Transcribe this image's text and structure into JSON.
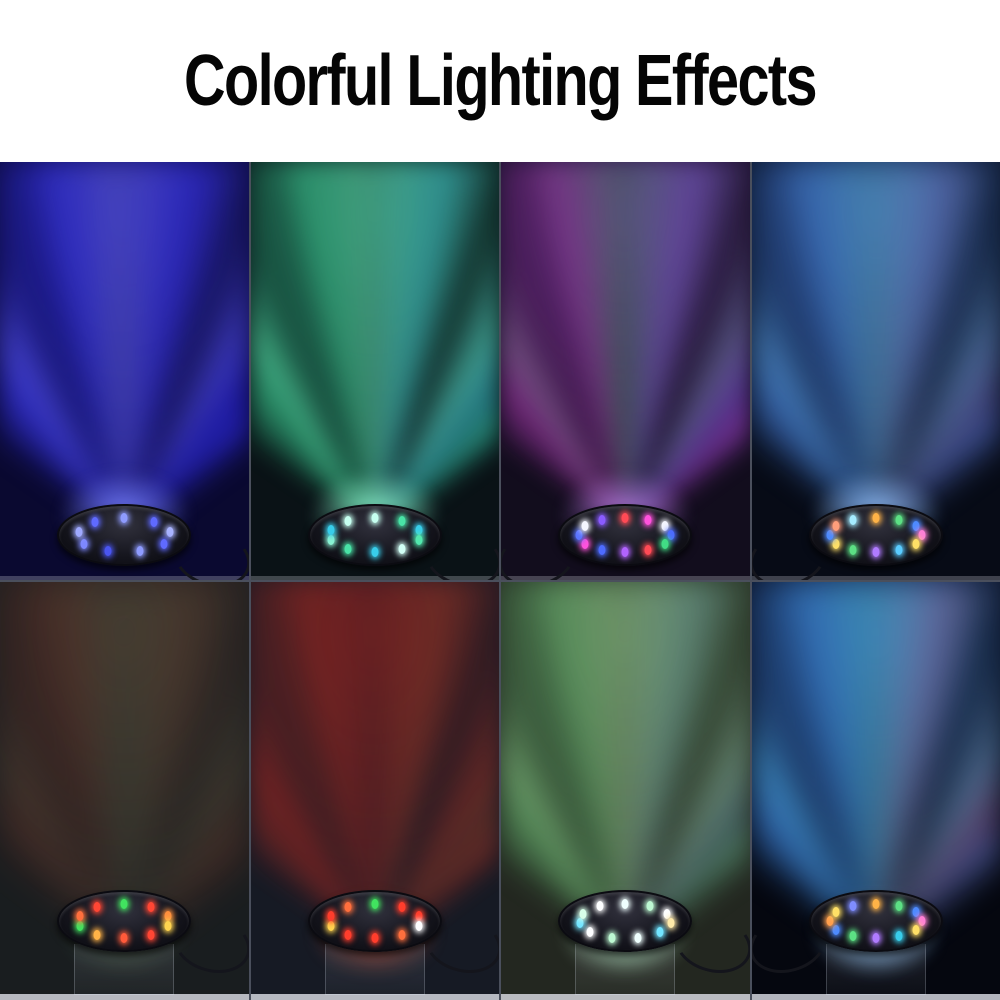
{
  "title": "Colorful Lighting Effects",
  "text_color": "#050505",
  "background_color": "#ffffff",
  "panels": [
    {
      "effect": "blue",
      "background": "#0a0930",
      "haze": "rgba(44,40,225,0.46)",
      "beam_colors": [
        "rgba(58,56,255,0.60)",
        "rgba(120,118,255,0.45)",
        "rgba(36,30,230,0.55)"
      ],
      "glow": "rgba(120,130,255,0.90)",
      "led_colors": [
        "#8e9bff",
        "#5f6aff",
        "#aab4ff",
        "#5f6aff",
        "#8e9bff",
        "#4a55f0",
        "#7d88ff",
        "#9fa9ff",
        "#5f6aff"
      ],
      "cord_side": "right",
      "stand": false
    },
    {
      "effect": "green-teal",
      "background": "#0a1216",
      "haze": "rgba(45,185,145,0.34)",
      "beam_colors": [
        "rgba(62,230,160,0.50)",
        "rgba(120,255,200,0.42)",
        "rgba(55,200,225,0.48)"
      ],
      "glow": "rgba(150,255,215,0.85)",
      "led_colors": [
        "#c6fff0",
        "#49e3a6",
        "#38cdea",
        "#52e8ae",
        "#d2fff6",
        "#38cdea",
        "#49e3a6",
        "#8af2d2",
        "#38cdea",
        "#c6fff0"
      ],
      "cord_side": "right",
      "stand": false
    },
    {
      "effect": "purple-magenta",
      "background": "#120d1d",
      "haze": "rgba(150,72,222,0.36)",
      "beam_colors": [
        "rgba(225,70,225,0.42)",
        "rgba(120,200,150,0.30)",
        "rgba(150,85,255,0.45)"
      ],
      "glow": "rgba(205,140,255,0.75)",
      "led_colors": [
        "#ff4a55",
        "#ff52dd",
        "#f5f6ff",
        "#4d6bff",
        "#41dd85",
        "#ff4a55",
        "#b163ff",
        "#4d6bff",
        "#ff52dd",
        "#5a74ff",
        "#f5f6ff",
        "#8a5bff"
      ],
      "cord_side": "left",
      "stand": false
    },
    {
      "effect": "blue-cyan",
      "background": "#070b16",
      "haze": "rgba(62,122,232,0.44)",
      "beam_colors": [
        "rgba(80,145,255,0.55)",
        "rgba(120,220,255,0.40)",
        "rgba(160,130,255,0.35)"
      ],
      "glow": "rgba(150,195,255,0.90)",
      "led_colors": [
        "#ffb347",
        "#5ce084",
        "#4d8bff",
        "#ff7fd6",
        "#ffe066",
        "#5accff",
        "#b07bff",
        "#5ce084",
        "#ffe066",
        "#4d8bff",
        "#ff9e7b",
        "#a5ecff"
      ],
      "cord_side": "left",
      "stand": false
    },
    {
      "effect": "red-green-dim",
      "background": "#191d1f",
      "haze": "rgba(152,72,52,0.26)",
      "beam_colors": [
        "rgba(210,80,55,0.30)",
        "rgba(110,170,120,0.26)",
        "rgba(180,90,60,0.28)"
      ],
      "glow": "rgba(140,210,150,0.45)",
      "led_colors": [
        "#41e35f",
        "#ff4634",
        "#ff8f3d",
        "#ffd44f",
        "#ff4634",
        "#ff5a3a",
        "#ffb347",
        "#41e35f",
        "#ff6f3d",
        "#ff4634"
      ],
      "cord_side": "right",
      "stand": true
    },
    {
      "effect": "red",
      "background": "#161a24",
      "haze": "rgba(192,42,30,0.32)",
      "beam_colors": [
        "rgba(225,50,35,0.42)",
        "rgba(170,35,35,0.34)",
        "rgba(235,95,50,0.30)"
      ],
      "glow": "rgba(255,95,60,0.50)",
      "led_colors": [
        "#41e35f",
        "#ff3d2c",
        "#ff3d2c",
        "#fdfdff",
        "#ff6f3d",
        "#ff3d2c",
        "#ff3d2c",
        "#ffd44f",
        "#ff3d2c",
        "#ff6f3d"
      ],
      "cord_side": "right",
      "stand": true
    },
    {
      "effect": "green-rainbow",
      "background": "#232720",
      "haze": "rgba(122,212,132,0.30)",
      "beam_colors": [
        "rgba(125,235,140,0.40)",
        "rgba(200,250,180,0.32)",
        "rgba(130,205,255,0.25)"
      ],
      "glow": "rgba(200,255,215,0.80)",
      "led_colors": [
        "#effffe",
        "#bdf8d2",
        "#fdfeff",
        "#ffeaa9",
        "#72e5ff",
        "#effffe",
        "#bdf8d2",
        "#fdfeff",
        "#72e5ff",
        "#d8ffe9",
        "#fdfeff"
      ],
      "cord_side": "right",
      "stand": true
    },
    {
      "effect": "blue-multicolor",
      "background": "#05070f",
      "haze": "rgba(62,132,240,0.46)",
      "beam_colors": [
        "rgba(70,150,255,0.58)",
        "rgba(95,225,255,0.42)",
        "rgba(255,130,225,0.30)"
      ],
      "glow": "rgba(160,210,255,0.95)",
      "led_colors": [
        "#ffb347",
        "#5ce084",
        "#4d8bff",
        "#ff7fd6",
        "#ffe066",
        "#38cdea",
        "#b07bff",
        "#5ce084",
        "#4d8bff",
        "#ff9e4d",
        "#ffe066",
        "#7f8dff"
      ],
      "cord_side": "left",
      "stand": true
    }
  ]
}
